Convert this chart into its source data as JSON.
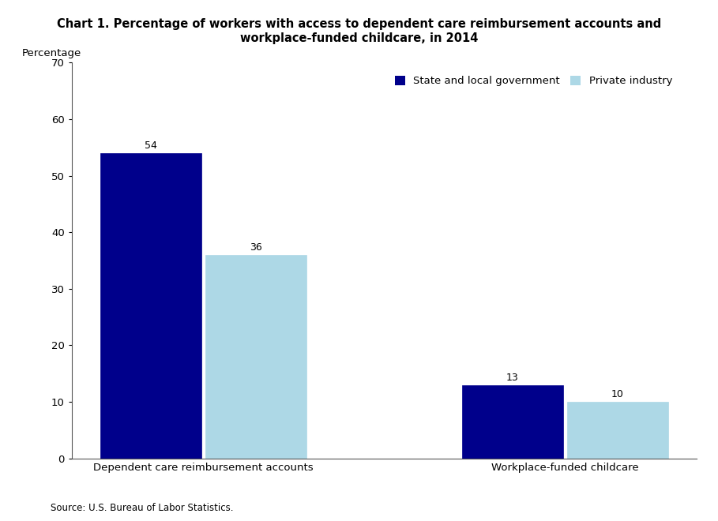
{
  "title_line1": "Chart 1. Percentage of workers with access to dependent care reimbursement accounts and",
  "title_line2": "workplace-funded childcare, in 2014",
  "ylabel_text": "Percentage",
  "source": "Source: U.S. Bureau of Labor Statistics.",
  "categories": [
    "Dependent care reimbursement accounts",
    "Workplace-funded childcare"
  ],
  "series": [
    {
      "name": "State and local government",
      "values": [
        54,
        13
      ],
      "color": "#00008B"
    },
    {
      "name": "Private industry",
      "values": [
        36,
        10
      ],
      "color": "#ADD8E6"
    }
  ],
  "ylim": [
    0,
    70
  ],
  "yticks": [
    0,
    10,
    20,
    30,
    40,
    50,
    60,
    70
  ],
  "bar_width": 0.28,
  "title_fontsize": 10.5,
  "tick_fontsize": 9.5,
  "legend_fontsize": 9.5,
  "source_fontsize": 8.5,
  "value_label_fontsize": 9
}
